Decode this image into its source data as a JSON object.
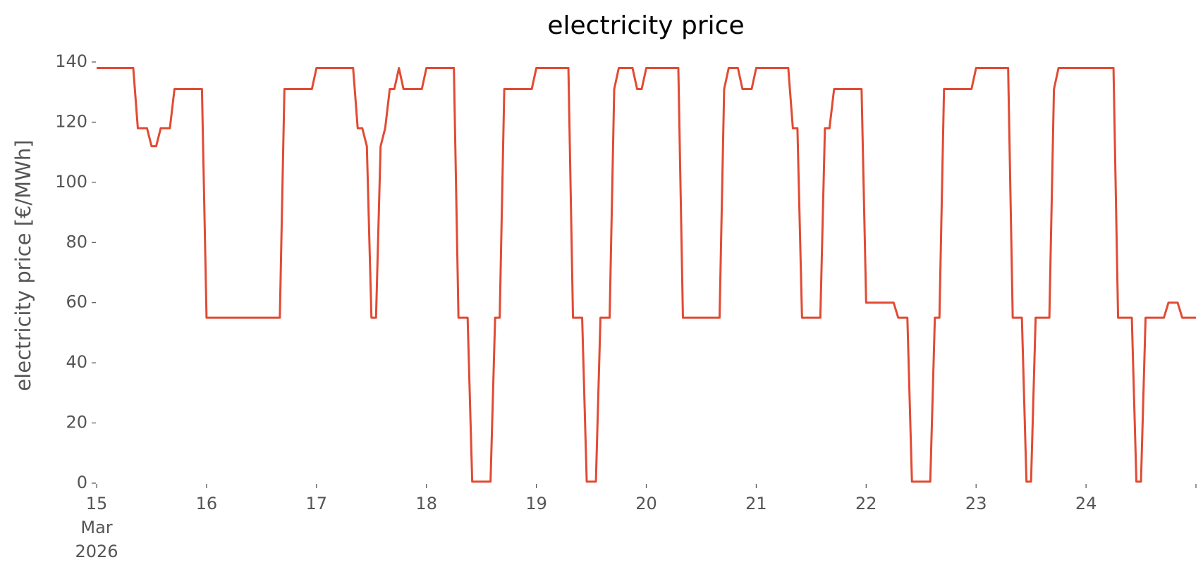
{
  "chart_data": {
    "type": "line",
    "title": "electricity price",
    "ylabel": "electricity price [€/MWh]",
    "color": "#e24a33",
    "x": [
      "2026-03-15 00:00",
      "2026-03-15 01:00",
      "2026-03-15 02:00",
      "2026-03-15 03:00",
      "2026-03-15 04:00",
      "2026-03-15 05:00",
      "2026-03-15 06:00",
      "2026-03-15 07:00",
      "2026-03-15 08:00",
      "2026-03-15 09:00",
      "2026-03-15 10:00",
      "2026-03-15 11:00",
      "2026-03-15 12:00",
      "2026-03-15 13:00",
      "2026-03-15 14:00",
      "2026-03-15 15:00",
      "2026-03-15 16:00",
      "2026-03-15 17:00",
      "2026-03-15 18:00",
      "2026-03-15 19:00",
      "2026-03-15 20:00",
      "2026-03-15 21:00",
      "2026-03-15 22:00",
      "2026-03-15 23:00",
      "2026-03-16 00:00",
      "2026-03-16 01:00",
      "2026-03-16 02:00",
      "2026-03-16 03:00",
      "2026-03-16 04:00",
      "2026-03-16 05:00",
      "2026-03-16 06:00",
      "2026-03-16 07:00",
      "2026-03-16 08:00",
      "2026-03-16 09:00",
      "2026-03-16 10:00",
      "2026-03-16 11:00",
      "2026-03-16 12:00",
      "2026-03-16 13:00",
      "2026-03-16 14:00",
      "2026-03-16 15:00",
      "2026-03-16 16:00",
      "2026-03-16 17:00",
      "2026-03-16 18:00",
      "2026-03-16 19:00",
      "2026-03-16 20:00",
      "2026-03-16 21:00",
      "2026-03-16 22:00",
      "2026-03-16 23:00",
      "2026-03-17 00:00",
      "2026-03-17 01:00",
      "2026-03-17 02:00",
      "2026-03-17 03:00",
      "2026-03-17 04:00",
      "2026-03-17 05:00",
      "2026-03-17 06:00",
      "2026-03-17 07:00",
      "2026-03-17 08:00",
      "2026-03-17 09:00",
      "2026-03-17 10:00",
      "2026-03-17 11:00",
      "2026-03-17 12:00",
      "2026-03-17 13:00",
      "2026-03-17 14:00",
      "2026-03-17 15:00",
      "2026-03-17 16:00",
      "2026-03-17 17:00",
      "2026-03-17 18:00",
      "2026-03-17 19:00",
      "2026-03-17 20:00",
      "2026-03-17 21:00",
      "2026-03-17 22:00",
      "2026-03-17 23:00",
      "2026-03-18 00:00",
      "2026-03-18 01:00",
      "2026-03-18 02:00",
      "2026-03-18 03:00",
      "2026-03-18 04:00",
      "2026-03-18 05:00",
      "2026-03-18 06:00",
      "2026-03-18 07:00",
      "2026-03-18 08:00",
      "2026-03-18 09:00",
      "2026-03-18 10:00",
      "2026-03-18 11:00",
      "2026-03-18 12:00",
      "2026-03-18 13:00",
      "2026-03-18 14:00",
      "2026-03-18 15:00",
      "2026-03-18 16:00",
      "2026-03-18 17:00",
      "2026-03-18 18:00",
      "2026-03-18 19:00",
      "2026-03-18 20:00",
      "2026-03-18 21:00",
      "2026-03-18 22:00",
      "2026-03-18 23:00",
      "2026-03-19 00:00",
      "2026-03-19 01:00",
      "2026-03-19 02:00",
      "2026-03-19 03:00",
      "2026-03-19 04:00",
      "2026-03-19 05:00",
      "2026-03-19 06:00",
      "2026-03-19 07:00",
      "2026-03-19 08:00",
      "2026-03-19 09:00",
      "2026-03-19 10:00",
      "2026-03-19 11:00",
      "2026-03-19 12:00",
      "2026-03-19 13:00",
      "2026-03-19 14:00",
      "2026-03-19 15:00",
      "2026-03-19 16:00",
      "2026-03-19 17:00",
      "2026-03-19 18:00",
      "2026-03-19 19:00",
      "2026-03-19 20:00",
      "2026-03-19 21:00",
      "2026-03-19 22:00",
      "2026-03-19 23:00",
      "2026-03-20 00:00",
      "2026-03-20 01:00",
      "2026-03-20 02:00",
      "2026-03-20 03:00",
      "2026-03-20 04:00",
      "2026-03-20 05:00",
      "2026-03-20 06:00",
      "2026-03-20 07:00",
      "2026-03-20 08:00",
      "2026-03-20 09:00",
      "2026-03-20 10:00",
      "2026-03-20 11:00",
      "2026-03-20 12:00",
      "2026-03-20 13:00",
      "2026-03-20 14:00",
      "2026-03-20 15:00",
      "2026-03-20 16:00",
      "2026-03-20 17:00",
      "2026-03-20 18:00",
      "2026-03-20 19:00",
      "2026-03-20 20:00",
      "2026-03-20 21:00",
      "2026-03-20 22:00",
      "2026-03-20 23:00",
      "2026-03-21 00:00",
      "2026-03-21 01:00",
      "2026-03-21 02:00",
      "2026-03-21 03:00",
      "2026-03-21 04:00",
      "2026-03-21 05:00",
      "2026-03-21 06:00",
      "2026-03-21 07:00",
      "2026-03-21 08:00",
      "2026-03-21 09:00",
      "2026-03-21 10:00",
      "2026-03-21 11:00",
      "2026-03-21 12:00",
      "2026-03-21 13:00",
      "2026-03-21 14:00",
      "2026-03-21 15:00",
      "2026-03-21 16:00",
      "2026-03-21 17:00",
      "2026-03-21 18:00",
      "2026-03-21 19:00",
      "2026-03-21 20:00",
      "2026-03-21 21:00",
      "2026-03-21 22:00",
      "2026-03-21 23:00",
      "2026-03-22 00:00",
      "2026-03-22 01:00",
      "2026-03-22 02:00",
      "2026-03-22 03:00",
      "2026-03-22 04:00",
      "2026-03-22 05:00",
      "2026-03-22 06:00",
      "2026-03-22 07:00",
      "2026-03-22 08:00",
      "2026-03-22 09:00",
      "2026-03-22 10:00",
      "2026-03-22 11:00",
      "2026-03-22 12:00",
      "2026-03-22 13:00",
      "2026-03-22 14:00",
      "2026-03-22 15:00",
      "2026-03-22 16:00",
      "2026-03-22 17:00",
      "2026-03-22 18:00",
      "2026-03-22 19:00",
      "2026-03-22 20:00",
      "2026-03-22 21:00",
      "2026-03-22 22:00",
      "2026-03-22 23:00",
      "2026-03-23 00:00",
      "2026-03-23 01:00",
      "2026-03-23 02:00",
      "2026-03-23 03:00",
      "2026-03-23 04:00",
      "2026-03-23 05:00",
      "2026-03-23 06:00",
      "2026-03-23 07:00",
      "2026-03-23 08:00",
      "2026-03-23 09:00",
      "2026-03-23 10:00",
      "2026-03-23 11:00",
      "2026-03-23 12:00",
      "2026-03-23 13:00",
      "2026-03-23 14:00",
      "2026-03-23 15:00",
      "2026-03-23 16:00",
      "2026-03-23 17:00",
      "2026-03-23 18:00",
      "2026-03-23 19:00",
      "2026-03-23 20:00",
      "2026-03-23 21:00",
      "2026-03-23 22:00",
      "2026-03-23 23:00",
      "2026-03-24 00:00",
      "2026-03-24 01:00",
      "2026-03-24 02:00",
      "2026-03-24 03:00",
      "2026-03-24 04:00",
      "2026-03-24 05:00",
      "2026-03-24 06:00",
      "2026-03-24 07:00",
      "2026-03-24 08:00",
      "2026-03-24 09:00",
      "2026-03-24 10:00",
      "2026-03-24 11:00",
      "2026-03-24 12:00",
      "2026-03-24 13:00",
      "2026-03-24 14:00",
      "2026-03-24 15:00",
      "2026-03-24 16:00",
      "2026-03-24 17:00",
      "2026-03-24 18:00",
      "2026-03-24 19:00",
      "2026-03-24 20:00",
      "2026-03-24 21:00",
      "2026-03-24 22:00",
      "2026-03-24 23:00",
      "2026-03-25 00:00"
    ],
    "values": [
      138,
      138,
      138,
      138,
      138,
      138,
      138,
      138,
      138,
      118,
      118,
      118,
      112,
      112,
      118,
      118,
      118,
      131,
      131,
      131,
      131,
      131,
      131,
      131,
      55,
      55,
      55,
      55,
      55,
      55,
      55,
      55,
      55,
      55,
      55,
      55,
      55,
      55,
      55,
      55,
      55,
      131,
      131,
      131,
      131,
      131,
      131,
      131,
      138,
      138,
      138,
      138,
      138,
      138,
      138,
      138,
      138,
      118,
      118,
      112,
      55,
      55,
      112,
      118,
      131,
      131,
      138,
      131,
      131,
      131,
      131,
      131,
      138,
      138,
      138,
      138,
      138,
      138,
      138,
      55,
      55,
      55,
      0.5,
      0.5,
      0.5,
      0.5,
      0.5,
      55,
      55,
      131,
      131,
      131,
      131,
      131,
      131,
      131,
      138,
      138,
      138,
      138,
      138,
      138,
      138,
      138,
      55,
      55,
      55,
      0.5,
      0.5,
      0.5,
      55,
      55,
      55,
      131,
      138,
      138,
      138,
      138,
      131,
      131,
      138,
      138,
      138,
      138,
      138,
      138,
      138,
      138,
      55,
      55,
      55,
      55,
      55,
      55,
      55,
      55,
      55,
      131,
      138,
      138,
      138,
      131,
      131,
      131,
      138,
      138,
      138,
      138,
      138,
      138,
      138,
      138,
      118,
      118,
      55,
      55,
      55,
      55,
      55,
      118,
      118,
      131,
      131,
      131,
      131,
      131,
      131,
      131,
      60,
      60,
      60,
      60,
      60,
      60,
      60,
      55,
      55,
      55,
      0.5,
      0.5,
      0.5,
      0.5,
      0.5,
      55,
      55,
      131,
      131,
      131,
      131,
      131,
      131,
      131,
      138,
      138,
      138,
      138,
      138,
      138,
      138,
      138,
      55,
      55,
      55,
      0.5,
      0.5,
      55,
      55,
      55,
      55,
      131,
      138,
      138,
      138,
      138,
      138,
      138,
      138,
      138,
      138,
      138,
      138,
      138,
      138,
      55,
      55,
      55,
      55,
      0.5,
      0.5,
      55,
      55,
      55,
      55,
      55,
      60,
      60,
      60,
      55,
      55,
      55,
      55
    ],
    "xlim": [
      "2026-03-15 00:00",
      "2026-03-25 00:00"
    ],
    "xticks": [
      {
        "value": "2026-03-15 00:00",
        "label": "15\nMar\n2026"
      },
      {
        "value": "2026-03-16 00:00",
        "label": "16"
      },
      {
        "value": "2026-03-17 00:00",
        "label": "17"
      },
      {
        "value": "2026-03-18 00:00",
        "label": "18"
      },
      {
        "value": "2026-03-19 00:00",
        "label": "19"
      },
      {
        "value": "2026-03-20 00:00",
        "label": "20"
      },
      {
        "value": "2026-03-21 00:00",
        "label": "21"
      },
      {
        "value": "2026-03-22 00:00",
        "label": "22"
      },
      {
        "value": "2026-03-23 00:00",
        "label": "23"
      },
      {
        "value": "2026-03-24 00:00",
        "label": "24"
      },
      {
        "value": "2026-03-25 00:00",
        "label": null
      }
    ],
    "ylim": [
      0,
      140
    ],
    "yticks": [
      0,
      20,
      40,
      60,
      80,
      100,
      120,
      140
    ],
    "grid": false
  }
}
